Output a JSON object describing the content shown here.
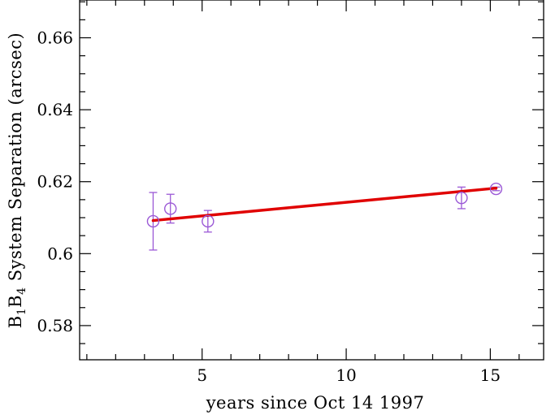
{
  "chart_data": {
    "type": "scatter",
    "title": "",
    "xlabel": "years since Oct 14 1997",
    "ylabel": {
      "prefix": "B",
      "sub1": "1",
      "mid": "B",
      "sub2": "4",
      "suffix": " System Separation (arcsec)"
    },
    "xlim": [
      0.75,
      16.85
    ],
    "ylim": [
      0.5705,
      0.6705
    ],
    "x_ticks": {
      "major": [
        5,
        10,
        15
      ],
      "minor": [
        1,
        2,
        3,
        4,
        6,
        7,
        8,
        9,
        11,
        12,
        13,
        14,
        16
      ],
      "labels": [
        "5",
        "10",
        "15"
      ]
    },
    "y_ticks": {
      "major": [
        0.58,
        0.6,
        0.62,
        0.64,
        0.66
      ],
      "minor": [
        0.575,
        0.585,
        0.59,
        0.595,
        0.605,
        0.61,
        0.615,
        0.625,
        0.63,
        0.635,
        0.645,
        0.65,
        0.655,
        0.665,
        0.67
      ],
      "labels": [
        "0.58",
        "0.6",
        "0.62",
        "0.64",
        "0.66"
      ]
    },
    "grid": false,
    "legend": "none",
    "series": [
      {
        "kind": "points-with-errorbars",
        "color": "#9b59d6",
        "marker": "open-circle",
        "points": [
          {
            "x": 3.3,
            "y": 0.609,
            "yerr_low": 0.008,
            "yerr_high": 0.008
          },
          {
            "x": 3.9,
            "y": 0.6125,
            "yerr_low": 0.004,
            "yerr_high": 0.004
          },
          {
            "x": 5.2,
            "y": 0.609,
            "yerr_low": 0.003,
            "yerr_high": 0.003
          },
          {
            "x": 14.0,
            "y": 0.6155,
            "yerr_low": 0.003,
            "yerr_high": 0.003
          },
          {
            "x": 15.2,
            "y": 0.618,
            "yerr_low": 0.0005,
            "yerr_high": 0.0005
          }
        ]
      },
      {
        "kind": "fit-line",
        "color": "#e00000",
        "x": [
          3.3,
          15.2
        ],
        "y": [
          0.6092,
          0.6182
        ]
      }
    ]
  }
}
